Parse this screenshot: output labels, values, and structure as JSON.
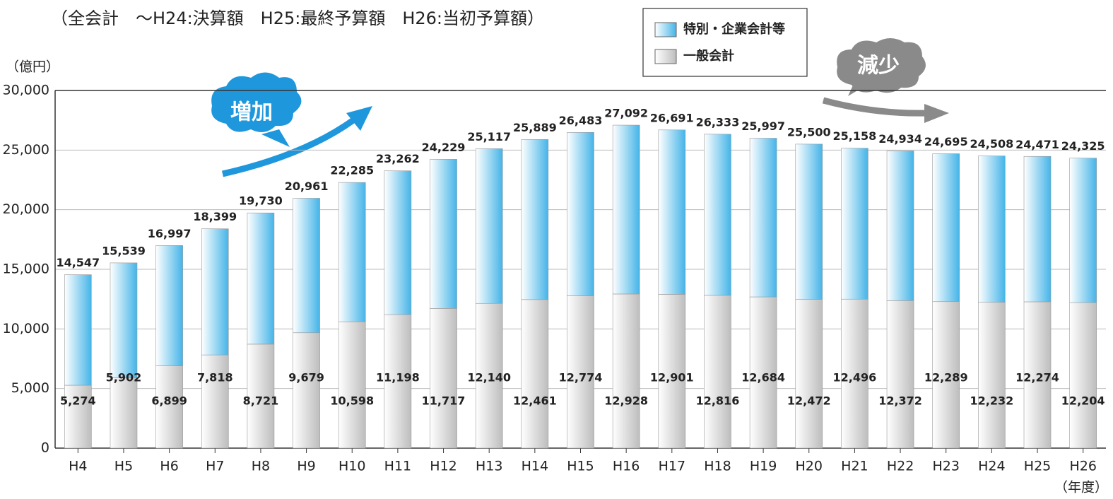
{
  "chart_data": {
    "type": "bar",
    "stacked": true,
    "title": "（全会計　～H24:決算額　H25:最終予算額　H26:当初予算額）",
    "y_label": "（億円）",
    "x_label": "（年度）",
    "annotations": [
      "増加",
      "減少"
    ],
    "categories": [
      "H4",
      "H5",
      "H6",
      "H7",
      "H8",
      "H9",
      "H10",
      "H11",
      "H12",
      "H13",
      "H14",
      "H15",
      "H16",
      "H17",
      "H18",
      "H19",
      "H20",
      "H21",
      "H22",
      "H23",
      "H24",
      "H25",
      "H26"
    ],
    "series": [
      {
        "name": "一般会計",
        "color": "#bdbdbd",
        "values": [
          5274,
          5902,
          6899,
          7818,
          8721,
          9679,
          10598,
          11198,
          11717,
          12140,
          12461,
          12774,
          12928,
          12901,
          12816,
          12684,
          12472,
          12496,
          12372,
          12289,
          12232,
          12274,
          12204
        ],
        "value_labels": [
          "5,274",
          "5,902",
          "6,899",
          "7,818",
          "8,721",
          "9,679",
          "10,598",
          "11,198",
          "11,717",
          "12,140",
          "12,461",
          "12,774",
          "12,928",
          "12,901",
          "12,816",
          "12,684",
          "12,472",
          "12,496",
          "12,372",
          "12,289",
          "12,232",
          "12,274",
          "12,204"
        ]
      },
      {
        "name": "特別・企業会計等",
        "color": "#45b4e8",
        "values": [
          9273,
          9637,
          10098,
          10581,
          11009,
          11282,
          11687,
          12064,
          12512,
          12977,
          13428,
          13709,
          14164,
          13790,
          13517,
          13313,
          13028,
          12662,
          12562,
          12406,
          12276,
          12197,
          12121
        ]
      }
    ],
    "totals": [
      14547,
      15539,
      16997,
      18399,
      19730,
      20961,
      22285,
      23262,
      24229,
      25117,
      25889,
      26483,
      27092,
      26691,
      26333,
      25997,
      25500,
      25158,
      24934,
      24695,
      24508,
      24471,
      24325
    ],
    "total_labels": [
      "14,547",
      "15,539",
      "16,997",
      "18,399",
      "19,730",
      "20,961",
      "22,285",
      "23,262",
      "24,229",
      "25,117",
      "25,889",
      "26,483",
      "27,092",
      "26,691",
      "26,333",
      "25,997",
      "25,500",
      "25,158",
      "24,934",
      "24,695",
      "24,508",
      "24,471",
      "24,325"
    ],
    "ylim": [
      0,
      30000
    ],
    "yticks": [
      {
        "value": 0,
        "label": "0"
      },
      {
        "value": 5000,
        "label": "5,000"
      },
      {
        "value": 10000,
        "label": "10,000"
      },
      {
        "value": 15000,
        "label": "15,000"
      },
      {
        "value": 20000,
        "label": "20,000"
      },
      {
        "value": 25000,
        "label": "25,000"
      },
      {
        "value": 30000,
        "label": "30,000"
      }
    ],
    "grid": true
  }
}
